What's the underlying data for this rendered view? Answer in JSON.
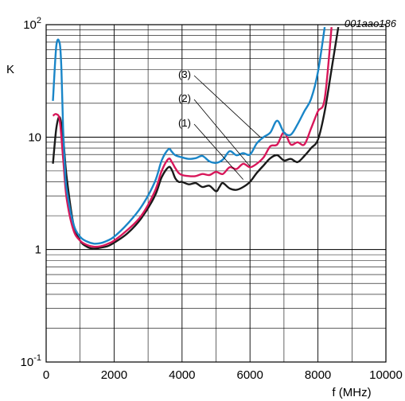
{
  "figure_id": "001aao186",
  "chart_data": {
    "type": "line",
    "title": "",
    "xlabel": "f (MHz)",
    "ylabel": "K",
    "xlim": [
      0,
      10000
    ],
    "ylim": [
      0.1,
      100
    ],
    "yscale": "log",
    "x_ticks": [
      0,
      2000,
      4000,
      6000,
      8000,
      10000
    ],
    "x_tick_labels": [
      "0",
      "2000",
      "4000",
      "6000",
      "8000",
      "10000"
    ],
    "y_ticks": [
      0.1,
      1,
      10,
      100
    ],
    "y_tick_labels": [
      {
        "base": "10",
        "exp": "-1"
      },
      {
        "base": "1",
        "exp": ""
      },
      {
        "base": "10",
        "exp": ""
      },
      {
        "base": "10",
        "exp": "2"
      }
    ],
    "grid": true,
    "series": [
      {
        "name": "(1)",
        "color": "#1a1a1a",
        "x": [
          200,
          300,
          400,
          500,
          600,
          800,
          1000,
          1200,
          1400,
          1600,
          1800,
          2000,
          2400,
          2800,
          3200,
          3400,
          3600,
          3700,
          3800,
          3900,
          4000,
          4200,
          4400,
          4600,
          4800,
          5000,
          5100,
          5200,
          5400,
          5600,
          5800,
          6000,
          6200,
          6400,
          6600,
          6800,
          7000,
          7200,
          7400,
          7600,
          7800,
          8000,
          8200,
          8400,
          8600
        ],
        "y": [
          5.8,
          12,
          15,
          10,
          4.5,
          1.7,
          1.2,
          1.06,
          1.02,
          1.04,
          1.07,
          1.15,
          1.4,
          1.9,
          3.0,
          4.4,
          5.4,
          5.1,
          4.3,
          4.0,
          4.0,
          3.8,
          3.9,
          3.6,
          3.7,
          3.3,
          3.6,
          3.9,
          3.5,
          3.4,
          3.6,
          4.0,
          4.8,
          5.6,
          6.5,
          6.9,
          6.2,
          6.4,
          6.0,
          6.8,
          8.0,
          9.5,
          17,
          40,
          95
        ]
      },
      {
        "name": "(2)",
        "color": "#d8175a",
        "x": [
          200,
          300,
          400,
          500,
          600,
          800,
          1000,
          1200,
          1400,
          1600,
          1800,
          2000,
          2400,
          2800,
          3200,
          3400,
          3600,
          3700,
          3800,
          3900,
          4000,
          4200,
          4400,
          4600,
          4800,
          5000,
          5200,
          5400,
          5600,
          5800,
          6000,
          6200,
          6400,
          6600,
          6800,
          7000,
          7200,
          7400,
          7600,
          7800,
          8000,
          8200,
          8400
        ],
        "y": [
          15.5,
          16,
          14,
          6.5,
          2.9,
          1.5,
          1.2,
          1.1,
          1.06,
          1.07,
          1.12,
          1.2,
          1.5,
          2.0,
          3.3,
          5.0,
          6.4,
          6.0,
          5.3,
          4.8,
          4.6,
          4.5,
          4.5,
          4.7,
          4.6,
          4.9,
          4.7,
          5.4,
          5.2,
          5.8,
          5.4,
          5.8,
          6.6,
          8.3,
          8.6,
          11,
          8.6,
          9.0,
          8.6,
          12,
          17,
          22,
          95
        ]
      },
      {
        "name": "(3)",
        "color": "#1a86c8",
        "x": [
          200,
          300,
          400,
          450,
          500,
          550,
          600,
          800,
          1000,
          1200,
          1400,
          1600,
          1800,
          2000,
          2400,
          2800,
          3200,
          3400,
          3600,
          3700,
          3800,
          4000,
          4200,
          4400,
          4600,
          4800,
          5000,
          5200,
          5400,
          5600,
          5800,
          6000,
          6200,
          6400,
          6600,
          6800,
          7000,
          7200,
          7400,
          7600,
          7800,
          8000,
          8200
        ],
        "y": [
          21,
          65,
          68,
          40,
          12,
          5.5,
          3.5,
          1.7,
          1.3,
          1.18,
          1.13,
          1.14,
          1.2,
          1.3,
          1.7,
          2.4,
          4.0,
          6.2,
          7.8,
          7.4,
          6.9,
          6.6,
          6.4,
          6.5,
          6.8,
          6.1,
          5.9,
          6.3,
          7.5,
          6.9,
          7.2,
          7.0,
          8.8,
          10,
          11,
          14,
          11,
          10.5,
          13,
          17,
          22,
          38,
          95
        ]
      }
    ],
    "annotations": [
      {
        "text": "(3)",
        "target_x": 6300,
        "target_y": 10,
        "side": "upper-left"
      },
      {
        "text": "(2)",
        "target_x": 6000,
        "target_y": 5.5,
        "side": "upper-left"
      },
      {
        "text": "(1)",
        "target_x": 5800,
        "target_y": 4.2,
        "side": "upper-left"
      }
    ]
  }
}
